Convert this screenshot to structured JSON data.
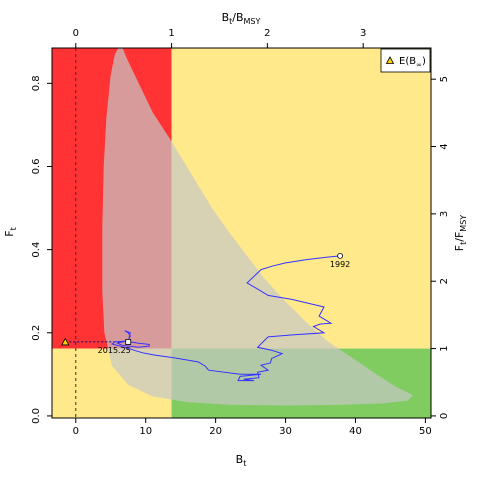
{
  "chart_data": {
    "type": "line",
    "title": "",
    "axes": {
      "x_bottom": {
        "label_base": "B",
        "label_sub": "t",
        "range": [
          -3.4,
          50.8
        ],
        "ticks": [
          0,
          10,
          20,
          30,
          40,
          50
        ]
      },
      "y_left": {
        "label_base": "F",
        "label_sub": "t",
        "range": [
          -0.005,
          0.885
        ],
        "ticks": [
          0.0,
          0.2,
          0.4,
          0.6,
          0.8
        ]
      },
      "x_top": {
        "label_base": "B",
        "label_sub1": "t",
        "label_mid": "/B",
        "label_sub2": "MSY",
        "ticks": [
          0,
          1,
          2,
          3
        ],
        "bmsy": 13.7
      },
      "y_right": {
        "label_base": "F",
        "label_sub1": "t",
        "label_mid": "/F",
        "label_sub2": "MSY",
        "ticks": [
          0,
          1,
          2,
          3,
          4,
          5
        ],
        "fmsy": 0.162
      }
    },
    "quadrants": {
      "red": "#ff3333",
      "yellow": "#ffe98b",
      "green": "#80cc60"
    },
    "confidence_region": {
      "color": "#c8c8c8",
      "polygon": [
        [
          6.7,
          0.885
        ],
        [
          7.3,
          0.86
        ],
        [
          9,
          0.8
        ],
        [
          11,
          0.73
        ],
        [
          13.7,
          0.66
        ],
        [
          15.5,
          0.61
        ],
        [
          17.5,
          0.555
        ],
        [
          19.5,
          0.5
        ],
        [
          22,
          0.44
        ],
        [
          24.5,
          0.385
        ],
        [
          27,
          0.33
        ],
        [
          30,
          0.275
        ],
        [
          33,
          0.225
        ],
        [
          36,
          0.18
        ],
        [
          39.5,
          0.14
        ],
        [
          43,
          0.1
        ],
        [
          45.8,
          0.07
        ],
        [
          48.2,
          0.05
        ],
        [
          47.5,
          0.037
        ],
        [
          44,
          0.03
        ],
        [
          38,
          0.027
        ],
        [
          30,
          0.025
        ],
        [
          22,
          0.027
        ],
        [
          16,
          0.033
        ],
        [
          11,
          0.047
        ],
        [
          7.5,
          0.075
        ],
        [
          5.2,
          0.12
        ],
        [
          4.1,
          0.2
        ],
        [
          3.8,
          0.3
        ],
        [
          3.8,
          0.45
        ],
        [
          4.0,
          0.6
        ],
        [
          4.4,
          0.72
        ],
        [
          5.0,
          0.82
        ],
        [
          5.6,
          0.87
        ],
        [
          6.1,
          0.885
        ]
      ]
    },
    "trajectory": {
      "color": "#3333ff",
      "start_label": "1992",
      "end_label": "2015.25",
      "points": [
        [
          37.8,
          0.385
        ],
        [
          36,
          0.382
        ],
        [
          33,
          0.376
        ],
        [
          30,
          0.368
        ],
        [
          28,
          0.36
        ],
        [
          26.5,
          0.352
        ],
        [
          24.5,
          0.32
        ],
        [
          26,
          0.305
        ],
        [
          27.5,
          0.29
        ],
        [
          31,
          0.28
        ],
        [
          35.5,
          0.262
        ],
        [
          34.8,
          0.24
        ],
        [
          36.5,
          0.223
        ],
        [
          35,
          0.221
        ],
        [
          34,
          0.215
        ],
        [
          35.5,
          0.2
        ],
        [
          31,
          0.195
        ],
        [
          27.5,
          0.19
        ],
        [
          26,
          0.165
        ],
        [
          28,
          0.158
        ],
        [
          29.5,
          0.15
        ],
        [
          28,
          0.138
        ],
        [
          27.8,
          0.127
        ],
        [
          26.5,
          0.122
        ],
        [
          27.5,
          0.11
        ],
        [
          26,
          0.105
        ],
        [
          26.2,
          0.092
        ],
        [
          24,
          0.088
        ],
        [
          25.5,
          0.085
        ],
        [
          23.2,
          0.085
        ],
        [
          23.5,
          0.095
        ],
        [
          26.5,
          0.1
        ],
        [
          23.5,
          0.1
        ],
        [
          19,
          0.11
        ],
        [
          18.5,
          0.12
        ],
        [
          17.5,
          0.13
        ],
        [
          14,
          0.14
        ],
        [
          11,
          0.147
        ],
        [
          9.5,
          0.152
        ],
        [
          7,
          0.165
        ],
        [
          5.2,
          0.173
        ],
        [
          5.6,
          0.178
        ],
        [
          7.2,
          0.18
        ],
        [
          9,
          0.175
        ],
        [
          10.5,
          0.172
        ],
        [
          10.5,
          0.168
        ],
        [
          9,
          0.165
        ],
        [
          6.6,
          0.17
        ],
        [
          6,
          0.175
        ],
        [
          7.5,
          0.182
        ],
        [
          7.8,
          0.192
        ],
        [
          7.5,
          0.2
        ],
        [
          7,
          0.205
        ],
        [
          7.8,
          0.2
        ],
        [
          7.5,
          0.178
        ]
      ]
    },
    "expected_point": {
      "x": -1.5,
      "y": 0.178,
      "x0": 0,
      "color": "#ffd700",
      "legend_base": "E(B",
      "legend_sub": "∞",
      "legend_close": ")"
    }
  }
}
